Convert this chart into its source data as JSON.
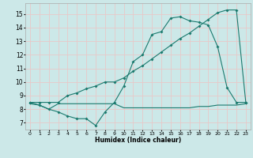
{
  "xlabel": "Humidex (Indice chaleur)",
  "xlim": [
    -0.5,
    23.5
  ],
  "ylim": [
    6.5,
    15.8
  ],
  "yticks": [
    7,
    8,
    9,
    10,
    11,
    12,
    13,
    14,
    15
  ],
  "xticks": [
    0,
    1,
    2,
    3,
    4,
    5,
    6,
    7,
    8,
    9,
    10,
    11,
    12,
    13,
    14,
    15,
    16,
    17,
    18,
    19,
    20,
    21,
    22,
    23
  ],
  "bg_color": "#cce8e8",
  "grid_color": "#e8c8c8",
  "line_color": "#1a7a6e",
  "line1_x": [
    0,
    1,
    2,
    3,
    4,
    5,
    6,
    7,
    8,
    9,
    10,
    11,
    12,
    13,
    14,
    15,
    16,
    17,
    18,
    19,
    20,
    21,
    22,
    23
  ],
  "line1_y": [
    8.4,
    8.3,
    8.0,
    8.4,
    8.4,
    8.4,
    8.4,
    8.4,
    8.4,
    8.4,
    8.1,
    8.1,
    8.1,
    8.1,
    8.1,
    8.1,
    8.1,
    8.1,
    8.2,
    8.2,
    8.3,
    8.3,
    8.3,
    8.4
  ],
  "line2_x": [
    0,
    1,
    2,
    3,
    4,
    5,
    6,
    7,
    8,
    9,
    10,
    11,
    12,
    13,
    14,
    15,
    16,
    17,
    18,
    19,
    20,
    21,
    22,
    23
  ],
  "line2_y": [
    8.5,
    8.3,
    8.0,
    7.8,
    7.5,
    7.3,
    7.3,
    6.8,
    7.8,
    8.5,
    9.7,
    11.5,
    12.0,
    13.5,
    13.7,
    14.7,
    14.8,
    14.5,
    14.4,
    14.2,
    12.6,
    9.6,
    8.5,
    8.5
  ],
  "line3_x": [
    0,
    1,
    2,
    3,
    4,
    5,
    6,
    7,
    8,
    9,
    10,
    11,
    12,
    13,
    14,
    15,
    16,
    17,
    18,
    19,
    20,
    21,
    22,
    23
  ],
  "line3_y": [
    8.5,
    8.5,
    8.5,
    8.5,
    9.0,
    9.2,
    9.5,
    9.7,
    10.0,
    10.0,
    10.3,
    10.8,
    11.2,
    11.7,
    12.2,
    12.7,
    13.2,
    13.6,
    14.1,
    14.6,
    15.1,
    15.3,
    15.3,
    8.5
  ]
}
